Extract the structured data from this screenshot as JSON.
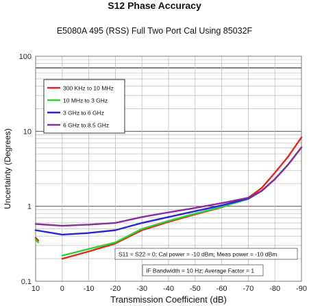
{
  "chart_data": {
    "type": "line",
    "title": "S12 Phase Accuracy",
    "subtitle": "E5080A 495 (RSS) Full Two Port Cal Using 85032F",
    "xlabel": "Transmission Coefficient (dB)",
    "ylabel": "Uncertainty (Degrees)",
    "x_ticks": [
      10,
      0,
      -10,
      -20,
      -30,
      -40,
      -50,
      -60,
      -70,
      -80,
      -90
    ],
    "x_tick_labels": [
      "10",
      "0",
      "-10",
      "-20",
      "-30",
      "-40",
      "-50",
      "-60",
      "-70",
      "-80",
      "-90"
    ],
    "xlim": [
      10,
      -90
    ],
    "y_scale": "log",
    "ylim": [
      0.1,
      100
    ],
    "y_tick_labels": [
      {
        "value": 100,
        "label": "100"
      },
      {
        "value": 10,
        "label": "10"
      },
      {
        "value": 1,
        "label": "1"
      },
      {
        "value": 0.1,
        "label": "0.1"
      }
    ],
    "grid": true,
    "legend_position": "top-left",
    "series": [
      {
        "name": "300 KHz to 10 MHz",
        "color": "#e8231e",
        "segments": [
          [
            [
              10,
              0.38
            ],
            [
              9,
              0.35
            ]
          ],
          [
            [
              0,
              0.2
            ],
            [
              -10,
              0.25
            ],
            [
              -20,
              0.32
            ],
            [
              -30,
              0.48
            ],
            [
              -40,
              0.62
            ],
            [
              -50,
              0.78
            ],
            [
              -60,
              0.97
            ],
            [
              -70,
              1.3
            ],
            [
              -75,
              1.75
            ],
            [
              -80,
              2.8
            ],
            [
              -85,
              4.6
            ],
            [
              -90,
              8.3
            ]
          ]
        ]
      },
      {
        "name": "10 MHz to 3 GHz",
        "color": "#2fd42f",
        "segments": [
          [
            [
              10,
              0.36
            ],
            [
              9,
              0.33
            ]
          ],
          [
            [
              0,
              0.22
            ],
            [
              -10,
              0.27
            ],
            [
              -20,
              0.33
            ],
            [
              -30,
              0.5
            ],
            [
              -40,
              0.64
            ],
            [
              -50,
              0.8
            ],
            [
              -60,
              0.98
            ],
            [
              -70,
              1.25
            ],
            [
              -75,
              1.6
            ],
            [
              -80,
              2.3
            ],
            [
              -85,
              3.6
            ],
            [
              -90,
              6.1
            ]
          ]
        ]
      },
      {
        "name": "3 GHz to 6 GHz",
        "color": "#2525d8",
        "segments": [
          [
            [
              10,
              0.48
            ],
            [
              0,
              0.42
            ],
            [
              -10,
              0.44
            ],
            [
              -20,
              0.48
            ],
            [
              -30,
              0.6
            ],
            [
              -40,
              0.72
            ],
            [
              -50,
              0.86
            ],
            [
              -60,
              1.03
            ],
            [
              -70,
              1.27
            ],
            [
              -75,
              1.6
            ],
            [
              -80,
              2.3
            ],
            [
              -85,
              3.6
            ],
            [
              -90,
              6.1
            ]
          ]
        ]
      },
      {
        "name": "6 GHz to 8.5 GHz",
        "color": "#8b2c9c",
        "segments": [
          [
            [
              10,
              0.58
            ],
            [
              0,
              0.55
            ],
            [
              -10,
              0.57
            ],
            [
              -20,
              0.6
            ],
            [
              -30,
              0.72
            ],
            [
              -40,
              0.83
            ],
            [
              -50,
              0.95
            ],
            [
              -60,
              1.1
            ],
            [
              -70,
              1.3
            ],
            [
              -75,
              1.6
            ],
            [
              -80,
              2.3
            ],
            [
              -85,
              3.6
            ],
            [
              -90,
              6.1
            ]
          ]
        ]
      }
    ],
    "annotations": [
      "S11 = S22 = 0; Cal power = -10 dBm; Meas power = -10 dBm",
      "IF Bandwidth = 10 Hz; Average Factor = 1"
    ]
  }
}
